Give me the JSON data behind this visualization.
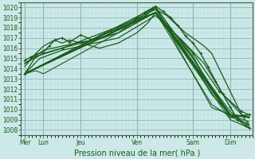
{
  "background_color": "#cce8e8",
  "grid_color_minor": "#b8d8d8",
  "grid_color_major": "#90b8b8",
  "line_color": "#1a5c1a",
  "ylim": [
    1007.5,
    1020.5
  ],
  "yticks": [
    1008,
    1009,
    1010,
    1011,
    1012,
    1013,
    1014,
    1015,
    1016,
    1017,
    1018,
    1019,
    1020
  ],
  "xlabel": "Pression niveau de la mer( hPa )",
  "day_labels": [
    "Mer",
    "Lun",
    "Jeu",
    "Ven",
    "Sam",
    "Dim"
  ],
  "day_x": [
    0.0,
    0.5,
    1.5,
    3.0,
    4.5,
    5.5
  ],
  "xlim": [
    -0.1,
    6.1
  ],
  "lines": [
    {
      "x": [
        0.0,
        0.15,
        0.3,
        0.5,
        0.65,
        0.8,
        1.0,
        1.2,
        1.5,
        1.8,
        2.0,
        2.3,
        2.5,
        2.8,
        3.0,
        3.2,
        3.4,
        3.5,
        3.7,
        3.9,
        4.1,
        4.3,
        4.5,
        4.7,
        4.9,
        5.1,
        5.3,
        5.5,
        5.7,
        5.9,
        6.0
      ],
      "y": [
        1014.8,
        1015.1,
        1015.4,
        1015.6,
        1016.2,
        1016.8,
        1017.0,
        1016.6,
        1017.3,
        1016.8,
        1017.2,
        1017.6,
        1017.9,
        1018.4,
        1019.0,
        1019.5,
        1019.9,
        1020.1,
        1019.6,
        1019.0,
        1018.2,
        1017.2,
        1016.5,
        1015.5,
        1014.2,
        1012.8,
        1011.5,
        1010.2,
        1009.0,
        1008.4,
        1008.2
      ],
      "marker": true,
      "lw": 1.0
    },
    {
      "x": [
        0.0,
        0.5,
        1.0,
        1.5,
        2.0,
        2.5,
        3.0,
        3.3,
        3.5,
        3.8,
        4.0,
        4.3,
        4.5,
        4.8,
        5.0,
        5.2,
        5.4,
        5.6,
        5.8,
        6.0
      ],
      "y": [
        1014.5,
        1015.8,
        1016.2,
        1016.6,
        1016.9,
        1017.5,
        1018.8,
        1019.5,
        1019.8,
        1019.2,
        1018.5,
        1017.5,
        1017.0,
        1016.2,
        1015.5,
        1014.0,
        1012.5,
        1011.0,
        1009.5,
        1008.5
      ],
      "marker": false,
      "lw": 0.9
    },
    {
      "x": [
        0.0,
        0.5,
        1.0,
        1.5,
        2.0,
        2.5,
        3.0,
        3.5,
        4.0,
        4.5,
        5.0,
        5.5,
        6.0
      ],
      "y": [
        1014.5,
        1015.5,
        1016.0,
        1016.5,
        1017.0,
        1017.5,
        1018.5,
        1020.0,
        1017.5,
        1015.2,
        1012.0,
        1009.5,
        1009.2
      ],
      "marker": false,
      "lw": 0.9
    },
    {
      "x": [
        0.0,
        0.3,
        0.5,
        0.8,
        1.0,
        1.2,
        1.5,
        1.8,
        2.0,
        2.5,
        3.0,
        3.3,
        3.5,
        4.0,
        4.5,
        5.0,
        5.5,
        6.0
      ],
      "y": [
        1014.2,
        1015.5,
        1016.2,
        1016.8,
        1016.5,
        1016.8,
        1016.5,
        1016.2,
        1016.0,
        1016.5,
        1017.5,
        1018.5,
        1019.5,
        1017.0,
        1014.5,
        1011.5,
        1009.5,
        1009.3
      ],
      "marker": false,
      "lw": 0.9
    },
    {
      "x": [
        0.0,
        0.3,
        0.5,
        3.5,
        4.5,
        5.5,
        6.0
      ],
      "y": [
        1013.5,
        1013.8,
        1013.5,
        1019.5,
        1015.0,
        1009.5,
        1009.3
      ],
      "marker": false,
      "lw": 0.8
    },
    {
      "x": [
        0.0,
        3.5,
        5.0,
        5.5,
        6.0
      ],
      "y": [
        1013.5,
        1019.5,
        1010.5,
        1009.3,
        1009.5
      ],
      "marker": false,
      "lw": 0.8
    },
    {
      "x": [
        0.0,
        3.5,
        4.5,
        5.5,
        6.0
      ],
      "y": [
        1013.5,
        1020.0,
        1015.0,
        1009.2,
        1009.5
      ],
      "marker": false,
      "lw": 0.8
    },
    {
      "x": [
        0.0,
        3.5,
        5.5,
        6.0
      ],
      "y": [
        1013.5,
        1019.8,
        1009.5,
        1009.2
      ],
      "marker": false,
      "lw": 0.8
    },
    {
      "x": [
        0.0,
        3.5,
        5.5,
        6.0
      ],
      "y": [
        1013.5,
        1019.5,
        1009.3,
        1008.5
      ],
      "marker": false,
      "lw": 0.8
    },
    {
      "x": [
        0.0,
        3.5,
        5.5,
        6.0
      ],
      "y": [
        1013.5,
        1019.5,
        1009.0,
        1008.2
      ],
      "marker": false,
      "lw": 0.8
    },
    {
      "x": [
        0.0,
        3.5,
        5.5,
        6.0
      ],
      "y": [
        1013.5,
        1019.5,
        1009.5,
        1008.8
      ],
      "marker": false,
      "lw": 0.8
    },
    {
      "x": [
        0.0,
        3.5,
        5.5,
        6.0
      ],
      "y": [
        1013.5,
        1019.5,
        1009.8,
        1008.3
      ],
      "marker": false,
      "lw": 0.8
    },
    {
      "x": [
        0.0,
        3.5,
        5.0,
        5.5,
        6.0
      ],
      "y": [
        1013.5,
        1020.0,
        1010.2,
        1009.5,
        1008.5
      ],
      "marker": false,
      "lw": 0.8
    },
    {
      "x": [
        0.0,
        0.3,
        1.0,
        3.5,
        4.5,
        5.2,
        5.8,
        6.0
      ],
      "y": [
        1013.5,
        1015.2,
        1016.0,
        1019.5,
        1015.5,
        1011.8,
        1009.8,
        1009.5
      ],
      "marker": true,
      "lw": 0.9
    },
    {
      "x": [
        0.0,
        0.4,
        1.0,
        1.5,
        2.5,
        3.5,
        4.2,
        4.8,
        5.3,
        5.8,
        6.0
      ],
      "y": [
        1013.5,
        1015.0,
        1015.8,
        1016.2,
        1017.0,
        1019.2,
        1016.8,
        1014.5,
        1011.5,
        1009.5,
        1009.2
      ],
      "marker": false,
      "lw": 0.9
    }
  ],
  "figsize": [
    3.2,
    2.0
  ],
  "dpi": 100,
  "tick_fontsize": 5.5,
  "label_fontsize": 7
}
